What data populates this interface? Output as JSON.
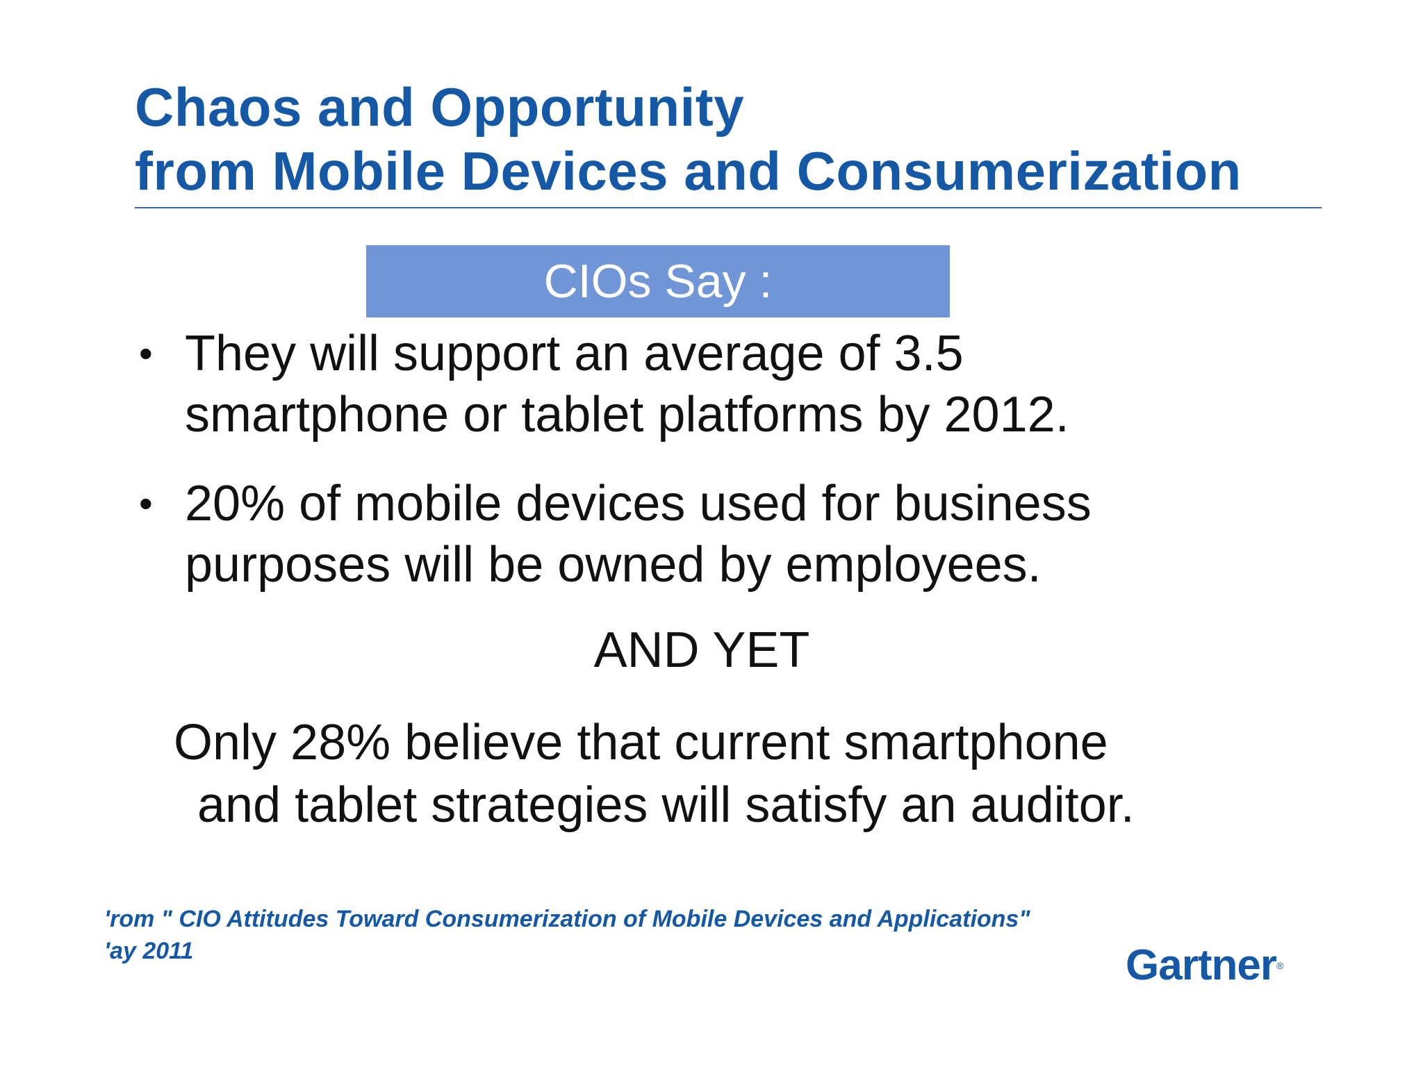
{
  "slide": {
    "title_line1": "Chaos and Opportunity",
    "title_line2": "from Mobile Devices and Consumerization",
    "banner": "CIOs Say :",
    "bullets": [
      {
        "line1": "They will support an average of 3.5",
        "line2": "smartphone or tablet platforms by 2012."
      },
      {
        "line1": "20% of mobile devices used for business",
        "line2": "purposes will be owned by employees."
      }
    ],
    "bullet_symbol": "•",
    "and_yet": "AND YET",
    "conclusion_line1": "Only 28% believe that current smartphone",
    "conclusion_line2": "and tablet strategies will satisfy an auditor.",
    "source_line1": "'rom \" CIO Attitudes Toward Consumerization of Mobile Devices and Applications\"",
    "source_line2": "'ay 2011",
    "logo": "Gartner",
    "logo_mark": "®"
  },
  "colors": {
    "title": "#1558a6",
    "banner_bg": "#7096d7",
    "banner_text": "#ffffff",
    "body_text": "#111111",
    "rule": "#3a66b2"
  }
}
